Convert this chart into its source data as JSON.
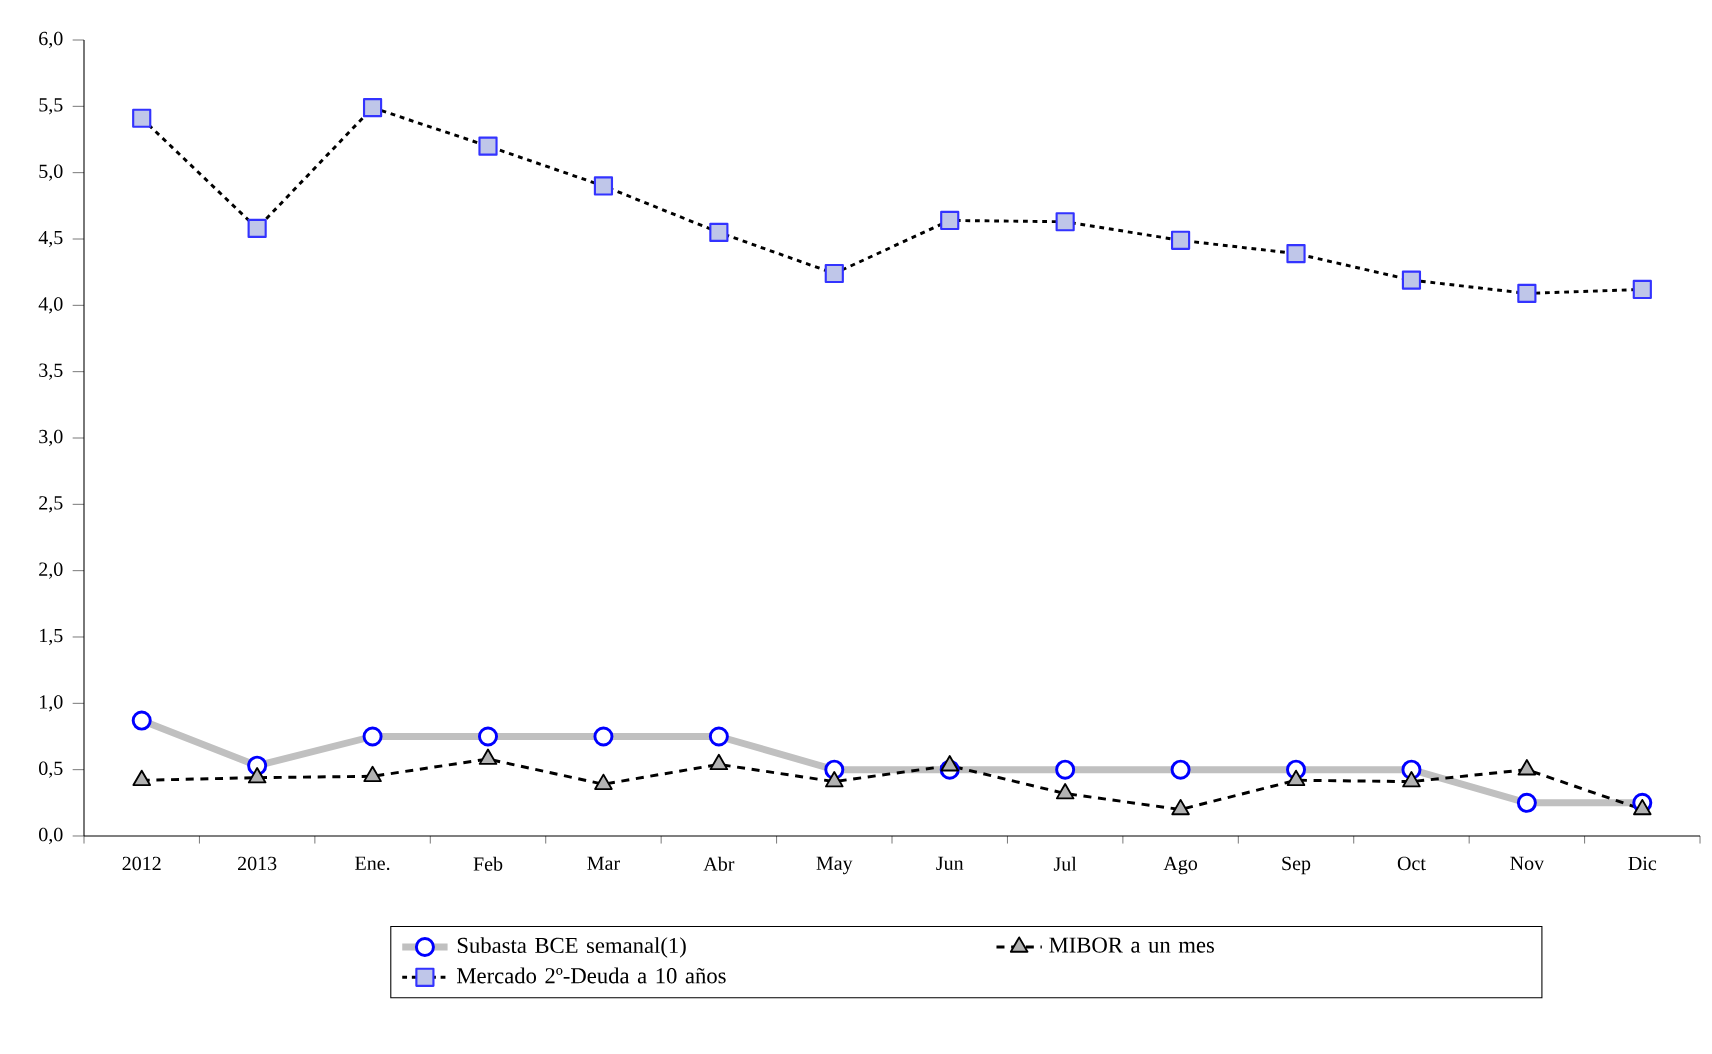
{
  "chart_data": {
    "type": "line",
    "categories": [
      "2012",
      "2013",
      "Ene.",
      "Feb",
      "Mar",
      "Abr",
      "May",
      "Jun",
      "Jul",
      "Ago",
      "Sep",
      "Oct",
      "Nov",
      "Dic"
    ],
    "series": [
      {
        "name": "Subasta BCE semanal(1)",
        "color": "#c0c0c0",
        "marker": "circle",
        "line_style": "solid",
        "values": [
          0.87,
          0.53,
          0.75,
          0.75,
          0.75,
          0.75,
          0.5,
          0.5,
          0.5,
          0.5,
          0.5,
          0.5,
          0.25,
          0.25
        ]
      },
      {
        "name": "MIBOR a un mes",
        "color": "#000000",
        "marker": "triangle",
        "line_style": "dashed",
        "values": [
          0.42,
          0.44,
          0.45,
          0.58,
          0.39,
          0.54,
          0.41,
          0.53,
          0.32,
          0.2,
          0.42,
          0.41,
          0.5,
          0.2
        ]
      },
      {
        "name": "Mercado 2º-Deuda a 10 años",
        "color": "#000000",
        "marker": "square",
        "line_style": "dotted",
        "values": [
          5.41,
          4.58,
          5.49,
          5.2,
          4.9,
          4.55,
          4.24,
          4.64,
          4.63,
          4.49,
          4.39,
          4.19,
          4.09,
          4.12
        ]
      }
    ],
    "ylim": [
      0,
      6
    ],
    "yticks": [
      {
        "value": 0,
        "label": "0,0"
      },
      {
        "value": 0.5,
        "label": "0,5"
      },
      {
        "value": 1,
        "label": "1,0"
      },
      {
        "value": 1.5,
        "label": "1,5"
      },
      {
        "value": 2,
        "label": "2,0"
      },
      {
        "value": 2.5,
        "label": "2,5"
      },
      {
        "value": 3,
        "label": "3,0"
      },
      {
        "value": 3.5,
        "label": "3,5"
      },
      {
        "value": 4,
        "label": "4,0"
      },
      {
        "value": 4.5,
        "label": "4,5"
      },
      {
        "value": 5,
        "label": "5,0"
      },
      {
        "value": 5.5,
        "label": "5,5"
      },
      {
        "value": 6,
        "label": "6,0"
      }
    ],
    "grid": false,
    "legend": "bottom"
  }
}
